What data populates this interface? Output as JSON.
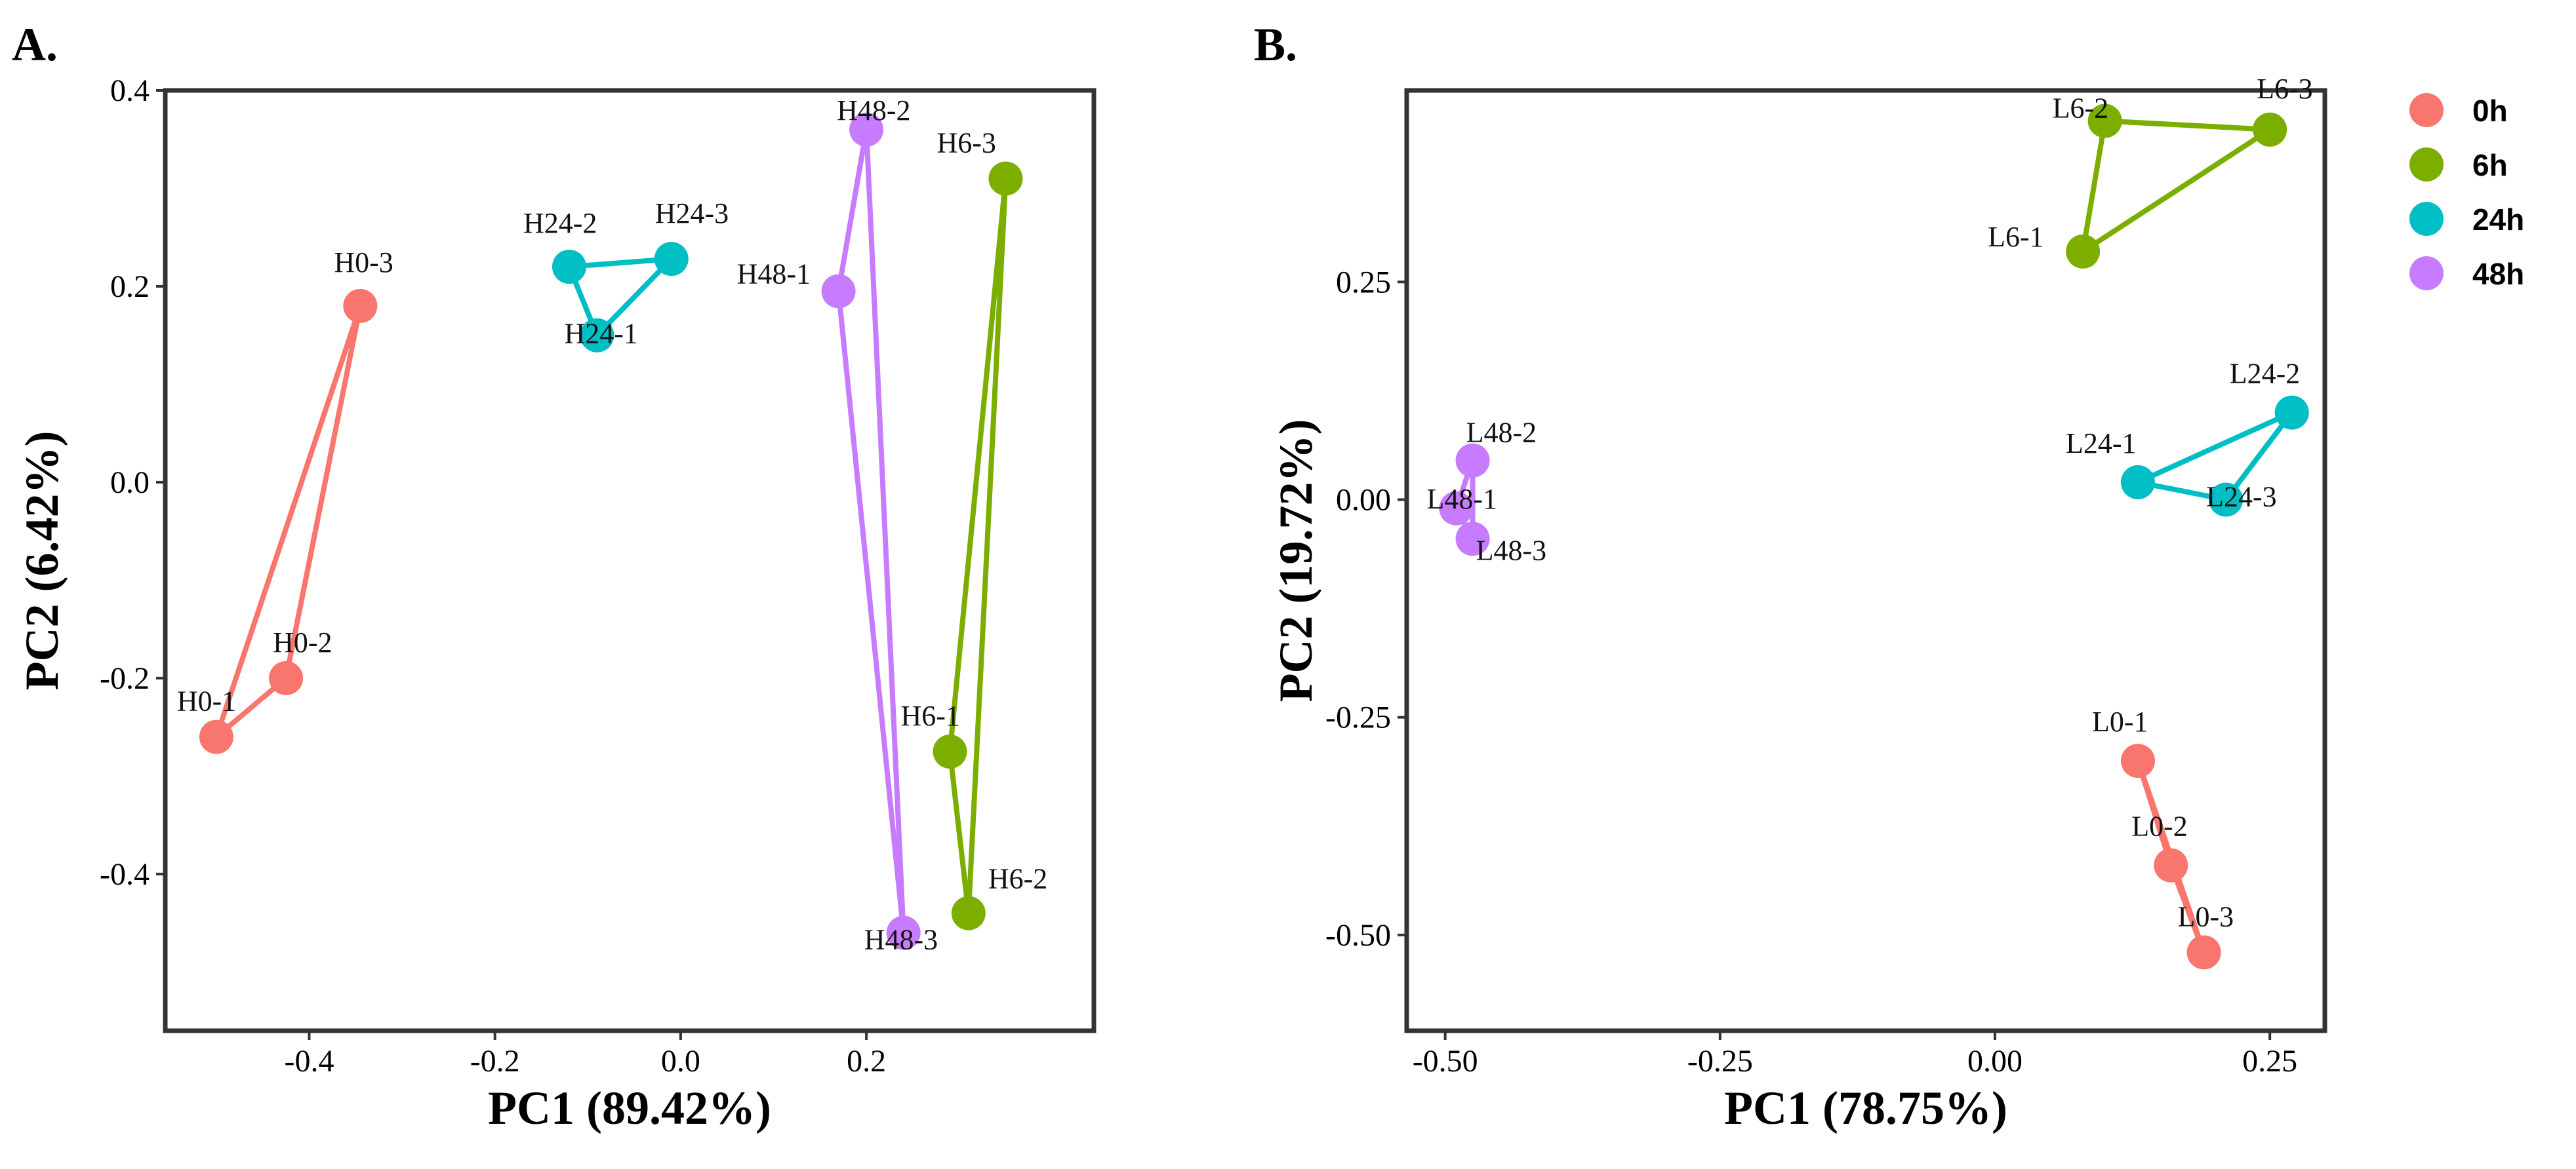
{
  "chart_data": [
    {
      "type": "scatter",
      "panel_label": "A.",
      "xlabel": "PC1 (89.42%)",
      "ylabel": "PC2 (6.42%)",
      "xlim": [
        -0.555,
        0.445
      ],
      "ylim": [
        -0.56,
        0.4
      ],
      "xticks": [
        -0.4,
        -0.2,
        0.0,
        0.2
      ],
      "xtick_labels": [
        "-0.4",
        "-0.2",
        "0.0",
        "0.2"
      ],
      "yticks": [
        -0.4,
        -0.2,
        0.0,
        0.2,
        0.4
      ],
      "ytick_labels": [
        "-0.4",
        "-0.2",
        "0.0",
        "0.2",
        "0.4"
      ],
      "series": [
        {
          "name": "0h",
          "points": [
            {
              "label": "H0-1",
              "x": -0.5,
              "y": -0.26
            },
            {
              "label": "H0-2",
              "x": -0.425,
              "y": -0.2
            },
            {
              "label": "H0-3",
              "x": -0.345,
              "y": 0.18
            }
          ]
        },
        {
          "name": "6h",
          "points": [
            {
              "label": "H6-1",
              "x": 0.29,
              "y": -0.275
            },
            {
              "label": "H6-2",
              "x": 0.31,
              "y": -0.44
            },
            {
              "label": "H6-3",
              "x": 0.35,
              "y": 0.31
            }
          ]
        },
        {
          "name": "24h",
          "points": [
            {
              "label": "H24-1",
              "x": -0.09,
              "y": 0.15
            },
            {
              "label": "H24-2",
              "x": -0.12,
              "y": 0.22
            },
            {
              "label": "H24-3",
              "x": -0.01,
              "y": 0.228
            }
          ]
        },
        {
          "name": "48h",
          "points": [
            {
              "label": "H48-1",
              "x": 0.17,
              "y": 0.195
            },
            {
              "label": "H48-2",
              "x": 0.2,
              "y": 0.36
            },
            {
              "label": "H48-3",
              "x": 0.24,
              "y": -0.46
            }
          ]
        }
      ]
    },
    {
      "type": "scatter",
      "panel_label": "B.",
      "xlabel": "PC1 (78.75%)",
      "ylabel": "PC2 (19.72%)",
      "xlim": [
        -0.535,
        0.3
      ],
      "ylim": [
        -0.61,
        0.47
      ],
      "xticks": [
        -0.5,
        -0.25,
        0.0,
        0.25
      ],
      "xtick_labels": [
        "-0.50",
        "-0.25",
        "0.00",
        "0.25"
      ],
      "yticks": [
        -0.5,
        -0.25,
        0.0,
        0.25
      ],
      "ytick_labels": [
        "-0.50",
        "-0.25",
        "0.00",
        "0.25"
      ],
      "series": [
        {
          "name": "0h",
          "points": [
            {
              "label": "L0-1",
              "x": 0.13,
              "y": -0.3
            },
            {
              "label": "L0-2",
              "x": 0.16,
              "y": -0.42
            },
            {
              "label": "L0-3",
              "x": 0.19,
              "y": -0.52
            }
          ]
        },
        {
          "name": "6h",
          "points": [
            {
              "label": "L6-1",
              "x": 0.08,
              "y": 0.285
            },
            {
              "label": "L6-2",
              "x": 0.1,
              "y": 0.435
            },
            {
              "label": "L6-3",
              "x": 0.25,
              "y": 0.425
            }
          ]
        },
        {
          "name": "24h",
          "points": [
            {
              "label": "L24-1",
              "x": 0.13,
              "y": 0.02
            },
            {
              "label": "L24-2",
              "x": 0.27,
              "y": 0.1
            },
            {
              "label": "L24-3",
              "x": 0.21,
              "y": 0.0
            }
          ]
        },
        {
          "name": "48h",
          "points": [
            {
              "label": "L48-1",
              "x": -0.49,
              "y": -0.01
            },
            {
              "label": "L48-2",
              "x": -0.475,
              "y": 0.045
            },
            {
              "label": "L48-3",
              "x": -0.475,
              "y": -0.045
            }
          ]
        }
      ]
    }
  ],
  "legend": {
    "items": [
      {
        "name": "0h",
        "color": "#F8766D"
      },
      {
        "name": "6h",
        "color": "#7CAE00"
      },
      {
        "name": "24h",
        "color": "#00BFC4"
      },
      {
        "name": "48h",
        "color": "#C77CFF"
      }
    ]
  }
}
